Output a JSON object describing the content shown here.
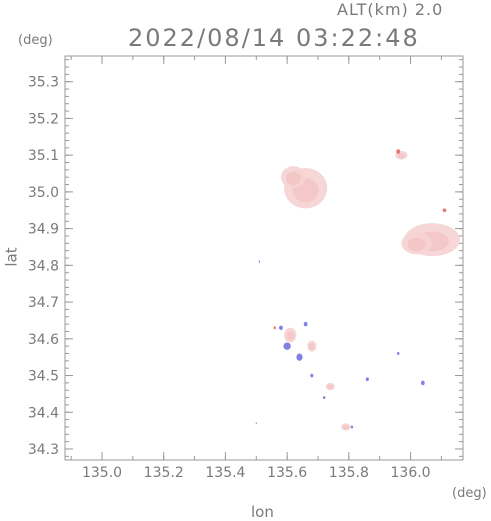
{
  "header": {
    "altitude_label": "ALT(km) 2.0",
    "timestamp": "2022/08/14 03:22:48"
  },
  "axes": {
    "x_label": "lon",
    "y_label": "lat",
    "x_unit": "(deg)",
    "y_unit": "(deg)",
    "x_ticks": [
      135.0,
      135.2,
      135.4,
      135.6,
      135.8,
      136.0
    ],
    "x_tick_labels": [
      "135.0",
      "135.2",
      "135.4",
      "135.6",
      "135.8",
      "136.0"
    ],
    "y_ticks": [
      34.3,
      34.4,
      34.5,
      34.6,
      34.7,
      34.8,
      34.9,
      35.0,
      35.1,
      35.2,
      35.3
    ],
    "y_tick_labels": [
      "34.3",
      "34.4",
      "34.5",
      "34.6",
      "34.7",
      "34.8",
      "34.9",
      "35.0",
      "35.1",
      "35.2",
      "35.3"
    ],
    "x_range": [
      134.88,
      136.17
    ],
    "y_range": [
      34.27,
      35.37
    ]
  },
  "colors": {
    "frame": "#999999",
    "text": "#7a7a7a",
    "echo_light": "#f6d4d4",
    "echo_mid": "#f2b9b9",
    "echo_strong": "#e06060",
    "echo_blue": "#6a6ae0"
  },
  "echo_regions": [
    {
      "kind": "pink",
      "lon": 135.66,
      "lat": 35.01,
      "rlon": 0.07,
      "rlat": 0.055
    },
    {
      "kind": "pink",
      "lon": 135.62,
      "lat": 35.04,
      "rlon": 0.04,
      "rlat": 0.03
    },
    {
      "kind": "pink",
      "lon": 136.07,
      "lat": 34.87,
      "rlon": 0.09,
      "rlat": 0.045
    },
    {
      "kind": "pink",
      "lon": 136.02,
      "lat": 34.86,
      "rlon": 0.05,
      "rlat": 0.03
    },
    {
      "kind": "pink",
      "lon": 135.97,
      "lat": 35.1,
      "rlon": 0.02,
      "rlat": 0.012
    },
    {
      "kind": "pink",
      "lon": 135.61,
      "lat": 34.61,
      "rlon": 0.02,
      "rlat": 0.02
    },
    {
      "kind": "pink",
      "lon": 135.68,
      "lat": 34.58,
      "rlon": 0.015,
      "rlat": 0.015
    },
    {
      "kind": "pink",
      "lon": 135.74,
      "lat": 34.47,
      "rlon": 0.015,
      "rlat": 0.01
    },
    {
      "kind": "pink",
      "lon": 135.79,
      "lat": 34.36,
      "rlon": 0.015,
      "rlat": 0.01
    },
    {
      "kind": "red",
      "lon": 135.96,
      "lat": 35.11,
      "rlon": 0.006,
      "rlat": 0.006
    },
    {
      "kind": "red",
      "lon": 136.11,
      "lat": 34.95,
      "rlon": 0.006,
      "rlat": 0.005
    },
    {
      "kind": "red",
      "lon": 135.56,
      "lat": 34.63,
      "rlon": 0.004,
      "rlat": 0.004
    },
    {
      "kind": "blue",
      "lon": 135.6,
      "lat": 34.58,
      "rlon": 0.012,
      "rlat": 0.01
    },
    {
      "kind": "blue",
      "lon": 135.64,
      "lat": 34.55,
      "rlon": 0.01,
      "rlat": 0.01
    },
    {
      "kind": "blue",
      "lon": 135.58,
      "lat": 34.63,
      "rlon": 0.006,
      "rlat": 0.006
    },
    {
      "kind": "blue",
      "lon": 135.66,
      "lat": 34.64,
      "rlon": 0.006,
      "rlat": 0.006
    },
    {
      "kind": "blue",
      "lon": 135.68,
      "lat": 34.5,
      "rlon": 0.005,
      "rlat": 0.005
    },
    {
      "kind": "blue",
      "lon": 135.86,
      "lat": 34.49,
      "rlon": 0.005,
      "rlat": 0.005
    },
    {
      "kind": "blue",
      "lon": 136.04,
      "lat": 34.48,
      "rlon": 0.006,
      "rlat": 0.006
    },
    {
      "kind": "blue",
      "lon": 135.96,
      "lat": 34.56,
      "rlon": 0.004,
      "rlat": 0.004
    },
    {
      "kind": "blue",
      "lon": 135.72,
      "lat": 34.44,
      "rlon": 0.004,
      "rlat": 0.004
    },
    {
      "kind": "blue",
      "lon": 135.81,
      "lat": 34.36,
      "rlon": 0.004,
      "rlat": 0.004
    },
    {
      "kind": "blue",
      "lon": 135.5,
      "lat": 34.37,
      "rlon": 0.002,
      "rlat": 0.002
    },
    {
      "kind": "blue",
      "lon": 135.51,
      "lat": 34.81,
      "rlon": 0.002,
      "rlat": 0.004
    }
  ]
}
